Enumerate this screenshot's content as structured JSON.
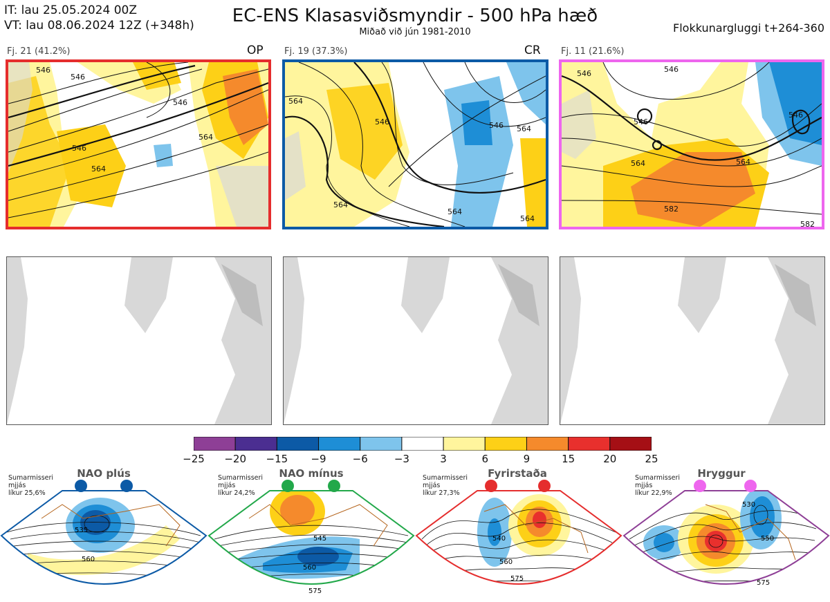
{
  "header": {
    "init_time": "IT: lau 25.05.2024 00Z",
    "valid_time": "VT: lau 08.06.2024 12Z  (+348h)",
    "title": "EC-ENS Klasasviðsmyndir - 500 hPa hæð",
    "subtitle": "Miðað við jún 1981-2010",
    "window": "Flokkunargluggi t+264-360"
  },
  "clusters": [
    {
      "label": "Fj. 21 (41.2%)",
      "tag": "OP",
      "border_color": "#e52d2d"
    },
    {
      "label": "Fj. 19 (37.3%)",
      "tag": "CR",
      "border_color": "#0c5aa6"
    },
    {
      "label": "Fj. 11 (21.6%)",
      "tag": "",
      "border_color": "#ee66ee"
    }
  ],
  "contour_labels": {
    "c1": [
      "546",
      "546",
      "546",
      "564",
      "564",
      "546"
    ],
    "c2": [
      "546",
      "564",
      "546",
      "564",
      "564",
      "564",
      "564"
    ],
    "c3": [
      "546",
      "546",
      "546",
      "564",
      "564",
      "582",
      "546",
      "582"
    ]
  },
  "colorbar": {
    "ticks": [
      "−25",
      "−20",
      "−15",
      "−9",
      "−6",
      "−3",
      "3",
      "6",
      "9",
      "15",
      "20",
      "25"
    ],
    "colors": [
      "#8e3f96",
      "#4b2e91",
      "#0c5aa6",
      "#1e8ed6",
      "#7ec4ec",
      "#ffffff",
      "#fff59d",
      "#fdd017",
      "#f58a2c",
      "#e8302d",
      "#a50f15"
    ]
  },
  "regimes": [
    {
      "name": "NAO plús",
      "season": "Sumarmisseri",
      "line2": "mjjás",
      "likelihood": "líkur 25,6%",
      "dot_color": "#0c5aa6",
      "frame_color": "#0c5aa6",
      "labels": [
        "535",
        "560"
      ]
    },
    {
      "name": "NAO mínus",
      "season": "Sumarmisseri",
      "line2": "mjjás",
      "likelihood": "líkur 24,2%",
      "dot_color": "#22a84a",
      "frame_color": "#22a84a",
      "labels": [
        "545",
        "560",
        "575"
      ]
    },
    {
      "name": "Fyrirstaða",
      "season": "Sumarmisseri",
      "line2": "mjjás",
      "likelihood": "líkur 27,3%",
      "dot_color": "#e52d2d",
      "frame_color": "#e52d2d",
      "labels": [
        "540",
        "560",
        "575"
      ]
    },
    {
      "name": "Hryggur",
      "season": "Sumarmisseri",
      "line2": "mjjás",
      "likelihood": "líkur 22,9%",
      "dot_color": "#ee66ee",
      "frame_color": "#8e3f96",
      "labels": [
        "530",
        "550",
        "575"
      ]
    }
  ]
}
